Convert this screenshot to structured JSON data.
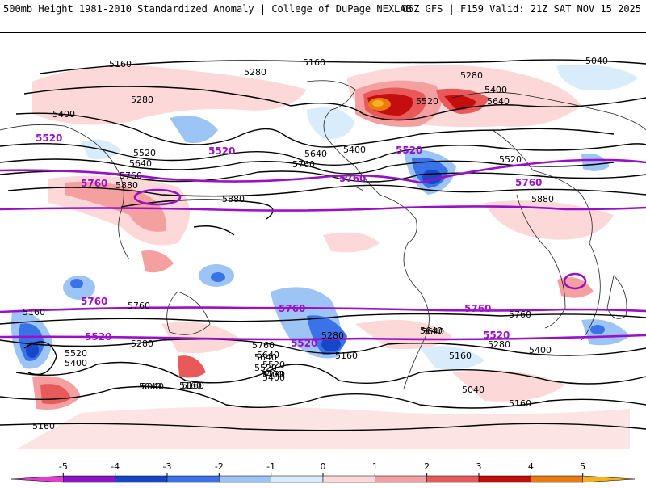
{
  "header": {
    "title": "500mb Height 1981-2010 Standardized Anomaly | College of DuPage NEXLAB",
    "run_info": "06Z GFS | F159 Valid: 21Z SAT NOV 15 2025"
  },
  "map": {
    "contour_labels": [
      "5160",
      "5160",
      "5040",
      "5280",
      "5280",
      "5280",
      "5400",
      "5400",
      "5400",
      "5520",
      "5520",
      "5520",
      "5640",
      "5640",
      "5640",
      "5760",
      "5760",
      "5880",
      "5880",
      "5880",
      "5760",
      "5640",
      "5520",
      "5400",
      "5280",
      "5160",
      "5040",
      "5160",
      "5280",
      "5400",
      "5520",
      "5640",
      "5760",
      "5280",
      "5160",
      "5640",
      "5160",
      "5280",
      "5400",
      "5040",
      "5160",
      "5160",
      "5760",
      "5640",
      "5520",
      "5400",
      "5160",
      "5040"
    ],
    "highlight_labels": [
      "5520",
      "5520",
      "5520",
      "5760",
      "5760",
      "5760",
      "5760",
      "5760",
      "5760",
      "5520",
      "5520",
      "5520"
    ]
  },
  "legend": {
    "ticks": [
      "-5",
      "-4",
      "-3",
      "-2",
      "-1",
      "0",
      "1",
      "2",
      "3",
      "4",
      "5"
    ],
    "colors": [
      "#e23cd2",
      "#8a14c6",
      "#1846c8",
      "#3a72e8",
      "#9cc4f4",
      "#d8ecfc",
      "#fcd8d8",
      "#f4a0a0",
      "#e85a5a",
      "#c40e0e",
      "#e87c10",
      "#f8b020"
    ]
  }
}
